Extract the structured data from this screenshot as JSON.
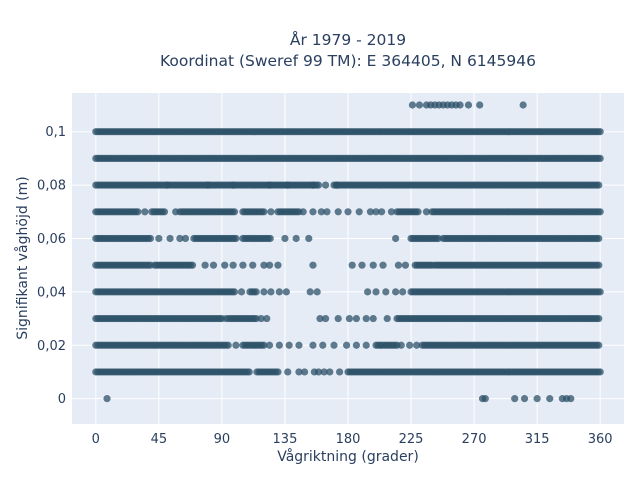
{
  "chart_data": {
    "type": "scatter",
    "title_line1": "År 1979 - 2019",
    "title_line2": "Koordinat (Sweref 99 TM): E 364405, N 6145946",
    "xlabel": "Vågriktning (grader)",
    "ylabel": "Signifikant våghöjd (m)",
    "xlim": [
      -17,
      377
    ],
    "ylim": [
      -0.0095,
      0.1145
    ],
    "x_ticks": [
      0,
      45,
      90,
      135,
      180,
      225,
      270,
      315,
      360
    ],
    "x_tick_labels": [
      "0",
      "45",
      "90",
      "135",
      "180",
      "225",
      "270",
      "315",
      "360"
    ],
    "y_ticks": [
      0,
      0.02,
      0.04,
      0.06,
      0.08,
      0.1
    ],
    "y_tick_labels": [
      "0",
      "0,02",
      "0,04",
      "0,06",
      "0,08",
      "0,1"
    ],
    "grid": true,
    "colors": {
      "marker": "#2e5168",
      "plot_bg": "#e5ecf6",
      "grid": "#ffffff"
    },
    "y_levels": [
      0,
      0.01,
      0.02,
      0.03,
      0.04,
      0.05,
      0.06,
      0.07,
      0.08,
      0.09,
      0.1,
      0.11
    ],
    "bands": [
      {
        "y": 0.1,
        "ranges": [
          [
            0,
            360
          ]
        ]
      },
      {
        "y": 0.09,
        "ranges": [
          [
            0,
            360
          ]
        ]
      },
      {
        "y": 0.08,
        "ranges": [
          [
            0,
            160
          ],
          [
            170,
            360
          ]
        ]
      },
      {
        "y": 0.07,
        "ranges": [
          [
            0,
            30
          ],
          [
            40,
            50
          ],
          [
            60,
            100
          ],
          [
            105,
            120
          ],
          [
            130,
            145
          ],
          [
            215,
            230
          ],
          [
            240,
            360
          ]
        ]
      },
      {
        "y": 0.06,
        "ranges": [
          [
            0,
            40
          ],
          [
            70,
            100
          ],
          [
            105,
            125
          ],
          [
            225,
            245
          ],
          [
            248,
            360
          ]
        ]
      },
      {
        "y": 0.05,
        "ranges": [
          [
            0,
            40
          ],
          [
            42,
            70
          ],
          [
            228,
            240
          ],
          [
            242,
            360
          ]
        ]
      },
      {
        "y": 0.04,
        "ranges": [
          [
            0,
            100
          ],
          [
            110,
            115
          ],
          [
            225,
            360
          ]
        ]
      },
      {
        "y": 0.03,
        "ranges": [
          [
            0,
            90
          ],
          [
            95,
            115
          ],
          [
            215,
            360
          ]
        ]
      },
      {
        "y": 0.02,
        "ranges": [
          [
            0,
            95
          ],
          [
            105,
            120
          ],
          [
            200,
            215
          ],
          [
            233,
            360
          ]
        ]
      },
      {
        "y": 0.01,
        "ranges": [
          [
            0,
            110
          ],
          [
            115,
            130
          ],
          [
            180,
            360
          ]
        ]
      }
    ],
    "scattered_points": [
      {
        "x": 8,
        "y": 0
      },
      {
        "x": 276,
        "y": 0
      },
      {
        "x": 278,
        "y": 0
      },
      {
        "x": 299,
        "y": 0
      },
      {
        "x": 306,
        "y": 0
      },
      {
        "x": 315,
        "y": 0
      },
      {
        "x": 324,
        "y": 0
      },
      {
        "x": 333,
        "y": 0
      },
      {
        "x": 336,
        "y": 0
      },
      {
        "x": 339,
        "y": 0
      },
      {
        "x": 226,
        "y": 0.11
      },
      {
        "x": 231,
        "y": 0.11
      },
      {
        "x": 236,
        "y": 0.11
      },
      {
        "x": 239,
        "y": 0.11
      },
      {
        "x": 242,
        "y": 0.11
      },
      {
        "x": 245,
        "y": 0.11
      },
      {
        "x": 248,
        "y": 0.11
      },
      {
        "x": 251,
        "y": 0.11
      },
      {
        "x": 254,
        "y": 0.11
      },
      {
        "x": 257,
        "y": 0.11
      },
      {
        "x": 260,
        "y": 0.11
      },
      {
        "x": 266,
        "y": 0.11
      },
      {
        "x": 274,
        "y": 0.11
      },
      {
        "x": 305,
        "y": 0.11
      },
      {
        "x": 51,
        "y": 0.08
      },
      {
        "x": 80,
        "y": 0.08
      },
      {
        "x": 98,
        "y": 0.08
      },
      {
        "x": 124,
        "y": 0.08
      },
      {
        "x": 137,
        "y": 0.08
      },
      {
        "x": 155,
        "y": 0.08
      },
      {
        "x": 164,
        "y": 0.08
      },
      {
        "x": 172,
        "y": 0.08
      },
      {
        "x": 35,
        "y": 0.07
      },
      {
        "x": 57,
        "y": 0.07
      },
      {
        "x": 125,
        "y": 0.07
      },
      {
        "x": 148,
        "y": 0.07
      },
      {
        "x": 155,
        "y": 0.07
      },
      {
        "x": 161,
        "y": 0.07
      },
      {
        "x": 165,
        "y": 0.07
      },
      {
        "x": 173,
        "y": 0.07
      },
      {
        "x": 180,
        "y": 0.07
      },
      {
        "x": 188,
        "y": 0.07
      },
      {
        "x": 196,
        "y": 0.07
      },
      {
        "x": 200,
        "y": 0.07
      },
      {
        "x": 204,
        "y": 0.07
      },
      {
        "x": 211,
        "y": 0.07
      },
      {
        "x": 236,
        "y": 0.07
      },
      {
        "x": 45,
        "y": 0.06
      },
      {
        "x": 53,
        "y": 0.06
      },
      {
        "x": 60,
        "y": 0.06
      },
      {
        "x": 64,
        "y": 0.06
      },
      {
        "x": 135,
        "y": 0.06
      },
      {
        "x": 143,
        "y": 0.06
      },
      {
        "x": 152,
        "y": 0.06
      },
      {
        "x": 214,
        "y": 0.06
      },
      {
        "x": 78,
        "y": 0.05
      },
      {
        "x": 84,
        "y": 0.05
      },
      {
        "x": 92,
        "y": 0.05
      },
      {
        "x": 98,
        "y": 0.05
      },
      {
        "x": 105,
        "y": 0.05
      },
      {
        "x": 112,
        "y": 0.05
      },
      {
        "x": 120,
        "y": 0.05
      },
      {
        "x": 124,
        "y": 0.05
      },
      {
        "x": 130,
        "y": 0.05
      },
      {
        "x": 155,
        "y": 0.05
      },
      {
        "x": 183,
        "y": 0.05
      },
      {
        "x": 190,
        "y": 0.05
      },
      {
        "x": 198,
        "y": 0.05
      },
      {
        "x": 205,
        "y": 0.05
      },
      {
        "x": 216,
        "y": 0.05
      },
      {
        "x": 221,
        "y": 0.05
      },
      {
        "x": 104,
        "y": 0.04
      },
      {
        "x": 120,
        "y": 0.04
      },
      {
        "x": 125,
        "y": 0.04
      },
      {
        "x": 131,
        "y": 0.04
      },
      {
        "x": 136,
        "y": 0.04
      },
      {
        "x": 153,
        "y": 0.04
      },
      {
        "x": 158,
        "y": 0.04
      },
      {
        "x": 194,
        "y": 0.04
      },
      {
        "x": 200,
        "y": 0.04
      },
      {
        "x": 207,
        "y": 0.04
      },
      {
        "x": 214,
        "y": 0.04
      },
      {
        "x": 219,
        "y": 0.04
      },
      {
        "x": 93,
        "y": 0.03
      },
      {
        "x": 118,
        "y": 0.03
      },
      {
        "x": 122,
        "y": 0.03
      },
      {
        "x": 160,
        "y": 0.03
      },
      {
        "x": 164,
        "y": 0.03
      },
      {
        "x": 173,
        "y": 0.03
      },
      {
        "x": 181,
        "y": 0.03
      },
      {
        "x": 186,
        "y": 0.03
      },
      {
        "x": 193,
        "y": 0.03
      },
      {
        "x": 198,
        "y": 0.03
      },
      {
        "x": 208,
        "y": 0.03
      },
      {
        "x": 100,
        "y": 0.02
      },
      {
        "x": 124,
        "y": 0.02
      },
      {
        "x": 131,
        "y": 0.02
      },
      {
        "x": 138,
        "y": 0.02
      },
      {
        "x": 145,
        "y": 0.02
      },
      {
        "x": 155,
        "y": 0.02
      },
      {
        "x": 162,
        "y": 0.02
      },
      {
        "x": 170,
        "y": 0.02
      },
      {
        "x": 179,
        "y": 0.02
      },
      {
        "x": 186,
        "y": 0.02
      },
      {
        "x": 193,
        "y": 0.02
      },
      {
        "x": 218,
        "y": 0.02
      },
      {
        "x": 224,
        "y": 0.02
      },
      {
        "x": 229,
        "y": 0.02
      },
      {
        "x": 137,
        "y": 0.01
      },
      {
        "x": 145,
        "y": 0.01
      },
      {
        "x": 149,
        "y": 0.01
      },
      {
        "x": 156,
        "y": 0.01
      },
      {
        "x": 159,
        "y": 0.01
      },
      {
        "x": 163,
        "y": 0.01
      },
      {
        "x": 167,
        "y": 0.01
      },
      {
        "x": 174,
        "y": 0.01
      }
    ]
  }
}
